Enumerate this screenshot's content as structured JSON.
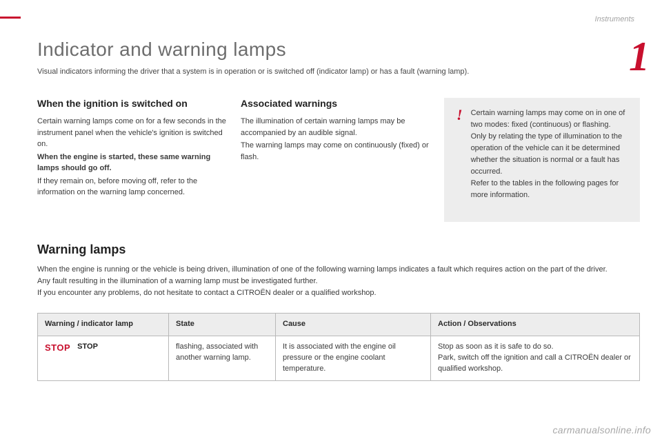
{
  "breadcrumb": "Instruments",
  "chapterNumber": "1",
  "title": "Indicator and warning lamps",
  "subtitle": "Visual indicators informing the driver that a system is in operation or is switched off (indicator lamp) or has a fault (warning lamp).",
  "columns": {
    "ignition": {
      "heading": "When the ignition is switched on",
      "p1": "Certain warning lamps come on for a few seconds in the instrument panel when the vehicle's ignition is switched on.",
      "boldLine": "When the engine is started, these same warning lamps should go off.",
      "p2": "If they remain on, before moving off, refer to the information on the warning lamp concerned."
    },
    "associated": {
      "heading": "Associated warnings",
      "p1": "The illumination of certain warning lamps may be accompanied by an audible signal.",
      "p2": "The warning lamps may come on continuously (fixed) or flash."
    }
  },
  "noteBox": {
    "symbol": "!",
    "text": "Certain warning lamps may come on in one of two modes: fixed (continuous) or flashing.\nOnly by relating the type of illumination to the operation of the vehicle can it be determined whether the situation is normal or a fault has occurred.\nRefer to the tables in the following pages for more information."
  },
  "warningSection": {
    "heading": "Warning lamps",
    "p1": "When the engine is running or the vehicle is being driven, illumination of one of the following warning lamps indicates a fault which requires action on the part of the driver.",
    "p2": "Any fault resulting in the illumination of a warning lamp must be investigated further.",
    "p3": "If you encounter any problems, do not hesitate to contact a CITROËN dealer or a qualified workshop."
  },
  "table": {
    "headers": {
      "lamp": "Warning / indicator lamp",
      "state": "State",
      "cause": "Cause",
      "action": "Action / Observations"
    },
    "row0": {
      "icon": "STOP",
      "name": "STOP",
      "state": "flashing, associated with another warning lamp.",
      "cause": "It is associated with the engine oil pressure or the engine coolant temperature.",
      "action": "Stop as soon as it is safe to do so.\nPark, switch off the ignition and call a CITROËN dealer or qualified workshop."
    }
  },
  "watermark": "carmanualsonline.info",
  "colors": {
    "accent": "#c8102e",
    "textBody": "#3a3a3a",
    "panelBg": "#ededed",
    "border": "#b8b8b8"
  }
}
